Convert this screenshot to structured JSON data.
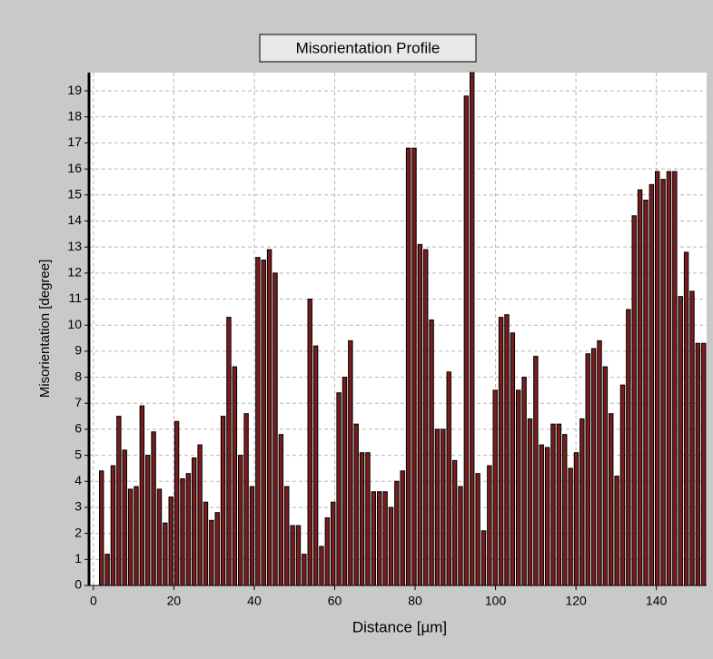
{
  "chart_data": {
    "type": "bar",
    "title": "Misorientation Profile",
    "xlabel": "Distance [µm]",
    "ylabel": "Misorientation [degree]",
    "color": "#7a1c1c",
    "grid": true,
    "x": [
      2,
      3.44,
      4.88,
      6.32,
      7.76,
      9.2,
      10.64,
      12.08,
      13.52,
      14.96,
      16.4,
      17.84,
      19.28,
      20.72,
      22.16,
      23.6,
      25.04,
      26.48,
      27.92,
      29.36,
      30.8,
      32.24,
      33.68,
      35.12,
      36.56,
      38,
      39.44,
      40.88,
      42.32,
      43.76,
      45.2,
      46.64,
      48.08,
      49.52,
      50.96,
      52.4,
      53.84,
      55.28,
      56.72,
      58.16,
      59.6,
      61.04,
      62.48,
      63.92,
      65.36,
      66.8,
      68.24,
      69.68,
      71.12,
      72.56,
      74,
      75.44,
      76.88,
      78.32,
      79.76,
      81.2,
      82.64,
      84.08,
      85.52,
      86.96,
      88.4,
      89.84,
      91.28,
      92.72,
      94.16,
      95.6,
      97.04,
      98.48,
      99.92,
      101.36,
      102.8,
      104.24,
      105.68,
      107.12,
      108.56,
      110,
      111.44,
      112.88,
      114.32,
      115.76,
      117.2,
      118.64,
      120.08,
      121.52,
      122.96,
      124.4,
      125.84,
      127.28,
      128.72,
      130.16,
      131.6,
      133.04,
      134.48,
      135.92,
      137.36,
      138.8,
      140.24,
      141.68,
      143.12,
      144.56,
      146,
      147.44,
      148.88,
      150.32,
      151.76
    ],
    "values": [
      4.4,
      1.2,
      4.6,
      6.5,
      5.2,
      3.7,
      3.8,
      6.9,
      5.0,
      5.9,
      3.7,
      2.4,
      3.4,
      6.3,
      4.1,
      4.3,
      4.9,
      5.4,
      3.2,
      2.5,
      2.8,
      6.5,
      10.3,
      8.4,
      5.0,
      6.6,
      3.8,
      12.6,
      12.5,
      12.9,
      12.0,
      5.8,
      3.8,
      2.3,
      2.3,
      1.2,
      11.0,
      9.2,
      1.5,
      2.6,
      3.2,
      7.4,
      8.0,
      9.4,
      6.2,
      5.1,
      5.1,
      3.6,
      3.6,
      3.6,
      3.0,
      4.0,
      4.4,
      16.8,
      16.8,
      13.1,
      12.9,
      10.2,
      6.0,
      6.0,
      8.2,
      4.8,
      3.8,
      18.8,
      19.7,
      4.3,
      2.1,
      4.6,
      7.5,
      10.3,
      10.4,
      9.7,
      7.5,
      8.0,
      6.4,
      8.8,
      5.4,
      5.3,
      6.2,
      6.2,
      5.8,
      4.5,
      5.1,
      6.4,
      8.9,
      9.1,
      9.4,
      8.4,
      6.6,
      4.2,
      7.7,
      10.6,
      14.2,
      15.2,
      14.8,
      15.4,
      15.9,
      15.6,
      15.9,
      15.9,
      11.1,
      12.8,
      11.3,
      9.3,
      9.3
    ],
    "xlim": [
      -1.1,
      152.5
    ],
    "xticks": [
      0,
      20,
      40,
      60,
      80,
      100,
      120,
      140
    ],
    "ylim": [
      0,
      19.7
    ],
    "yticks": [
      0,
      1,
      2,
      3,
      4,
      5,
      6,
      7,
      8,
      9,
      10,
      11,
      12,
      13,
      14,
      15,
      16,
      17,
      18,
      19
    ]
  }
}
